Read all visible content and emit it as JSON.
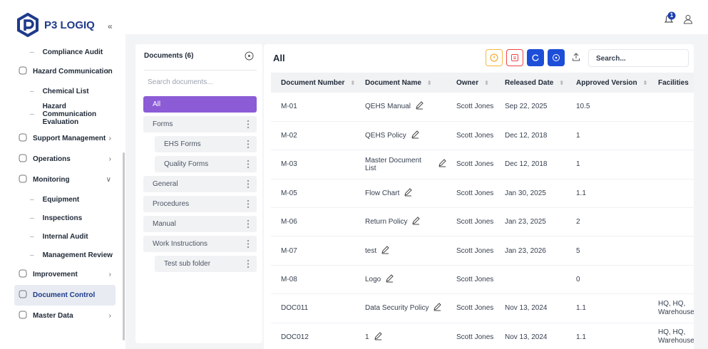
{
  "header": {
    "brand": "P3 LOGIQ",
    "notification_count": "1"
  },
  "sidebar": {
    "items": [
      {
        "children": [
          "Compliance Audit"
        ]
      },
      {
        "label": "Hazard Communication",
        "expanded": true,
        "children": [
          "Chemical List",
          "Hazard Communication Evaluation"
        ]
      },
      {
        "label": "Support Management",
        "expanded": false
      },
      {
        "label": "Operations",
        "expanded": false
      },
      {
        "label": "Monitoring",
        "expanded": true,
        "children": [
          "Equipment",
          "Inspections",
          "Internal Audit",
          "Management Review"
        ]
      },
      {
        "label": "Improvement",
        "expanded": false
      },
      {
        "label": "Document Control",
        "active": true
      },
      {
        "label": "Master Data",
        "expanded": false
      }
    ]
  },
  "folders": {
    "title": "Documents (6)",
    "search_placeholder": "Search documents...",
    "items": [
      {
        "label": "All",
        "active": true
      },
      {
        "label": "Forms",
        "children": [
          "EHS Forms",
          "Quality Forms"
        ]
      },
      {
        "label": "General"
      },
      {
        "label": "Procedures"
      },
      {
        "label": "Manual"
      },
      {
        "label": "Work Instructions",
        "children": [
          "Test sub folder"
        ]
      }
    ]
  },
  "table": {
    "title": "All",
    "search_placeholder": "Search...",
    "columns": [
      "Document Number",
      "Document Name",
      "Owner",
      "Released Date",
      "Approved Version",
      "Facilities"
    ],
    "rows": [
      [
        "M-01",
        "QEHS Manual",
        "Scott Jones",
        "Sep 22, 2025",
        "10.5",
        null
      ],
      [
        "M-02",
        "QEHS Policy",
        "Scott Jones",
        "Dec 12, 2018",
        "1",
        null
      ],
      [
        "M-03",
        "Master Document List",
        "Scott Jones",
        "Dec 12, 2018",
        "1",
        null
      ],
      [
        "M-05",
        "Flow Chart",
        "Scott Jones",
        "Jan 30, 2025",
        "1.1",
        null
      ],
      [
        "M-06",
        "Return Policy",
        "Scott Jones",
        "Jan 23, 2025",
        "2",
        null
      ],
      [
        "M-07",
        "test",
        "Scott Jones",
        "Jan 23, 2026",
        "5",
        null
      ],
      [
        "M-08",
        "Logo",
        "Scott Jones",
        null,
        "0",
        null
      ],
      [
        "DOC011",
        "Data Security Policy",
        "Scott Jones",
        "Nov 13, 2024",
        "1.1",
        "HQ, HQ, Warehouse"
      ],
      [
        "DOC012",
        "1",
        "Scott Jones",
        "Nov 13, 2024",
        "1.1",
        "HQ, HQ, Warehouse"
      ]
    ]
  }
}
